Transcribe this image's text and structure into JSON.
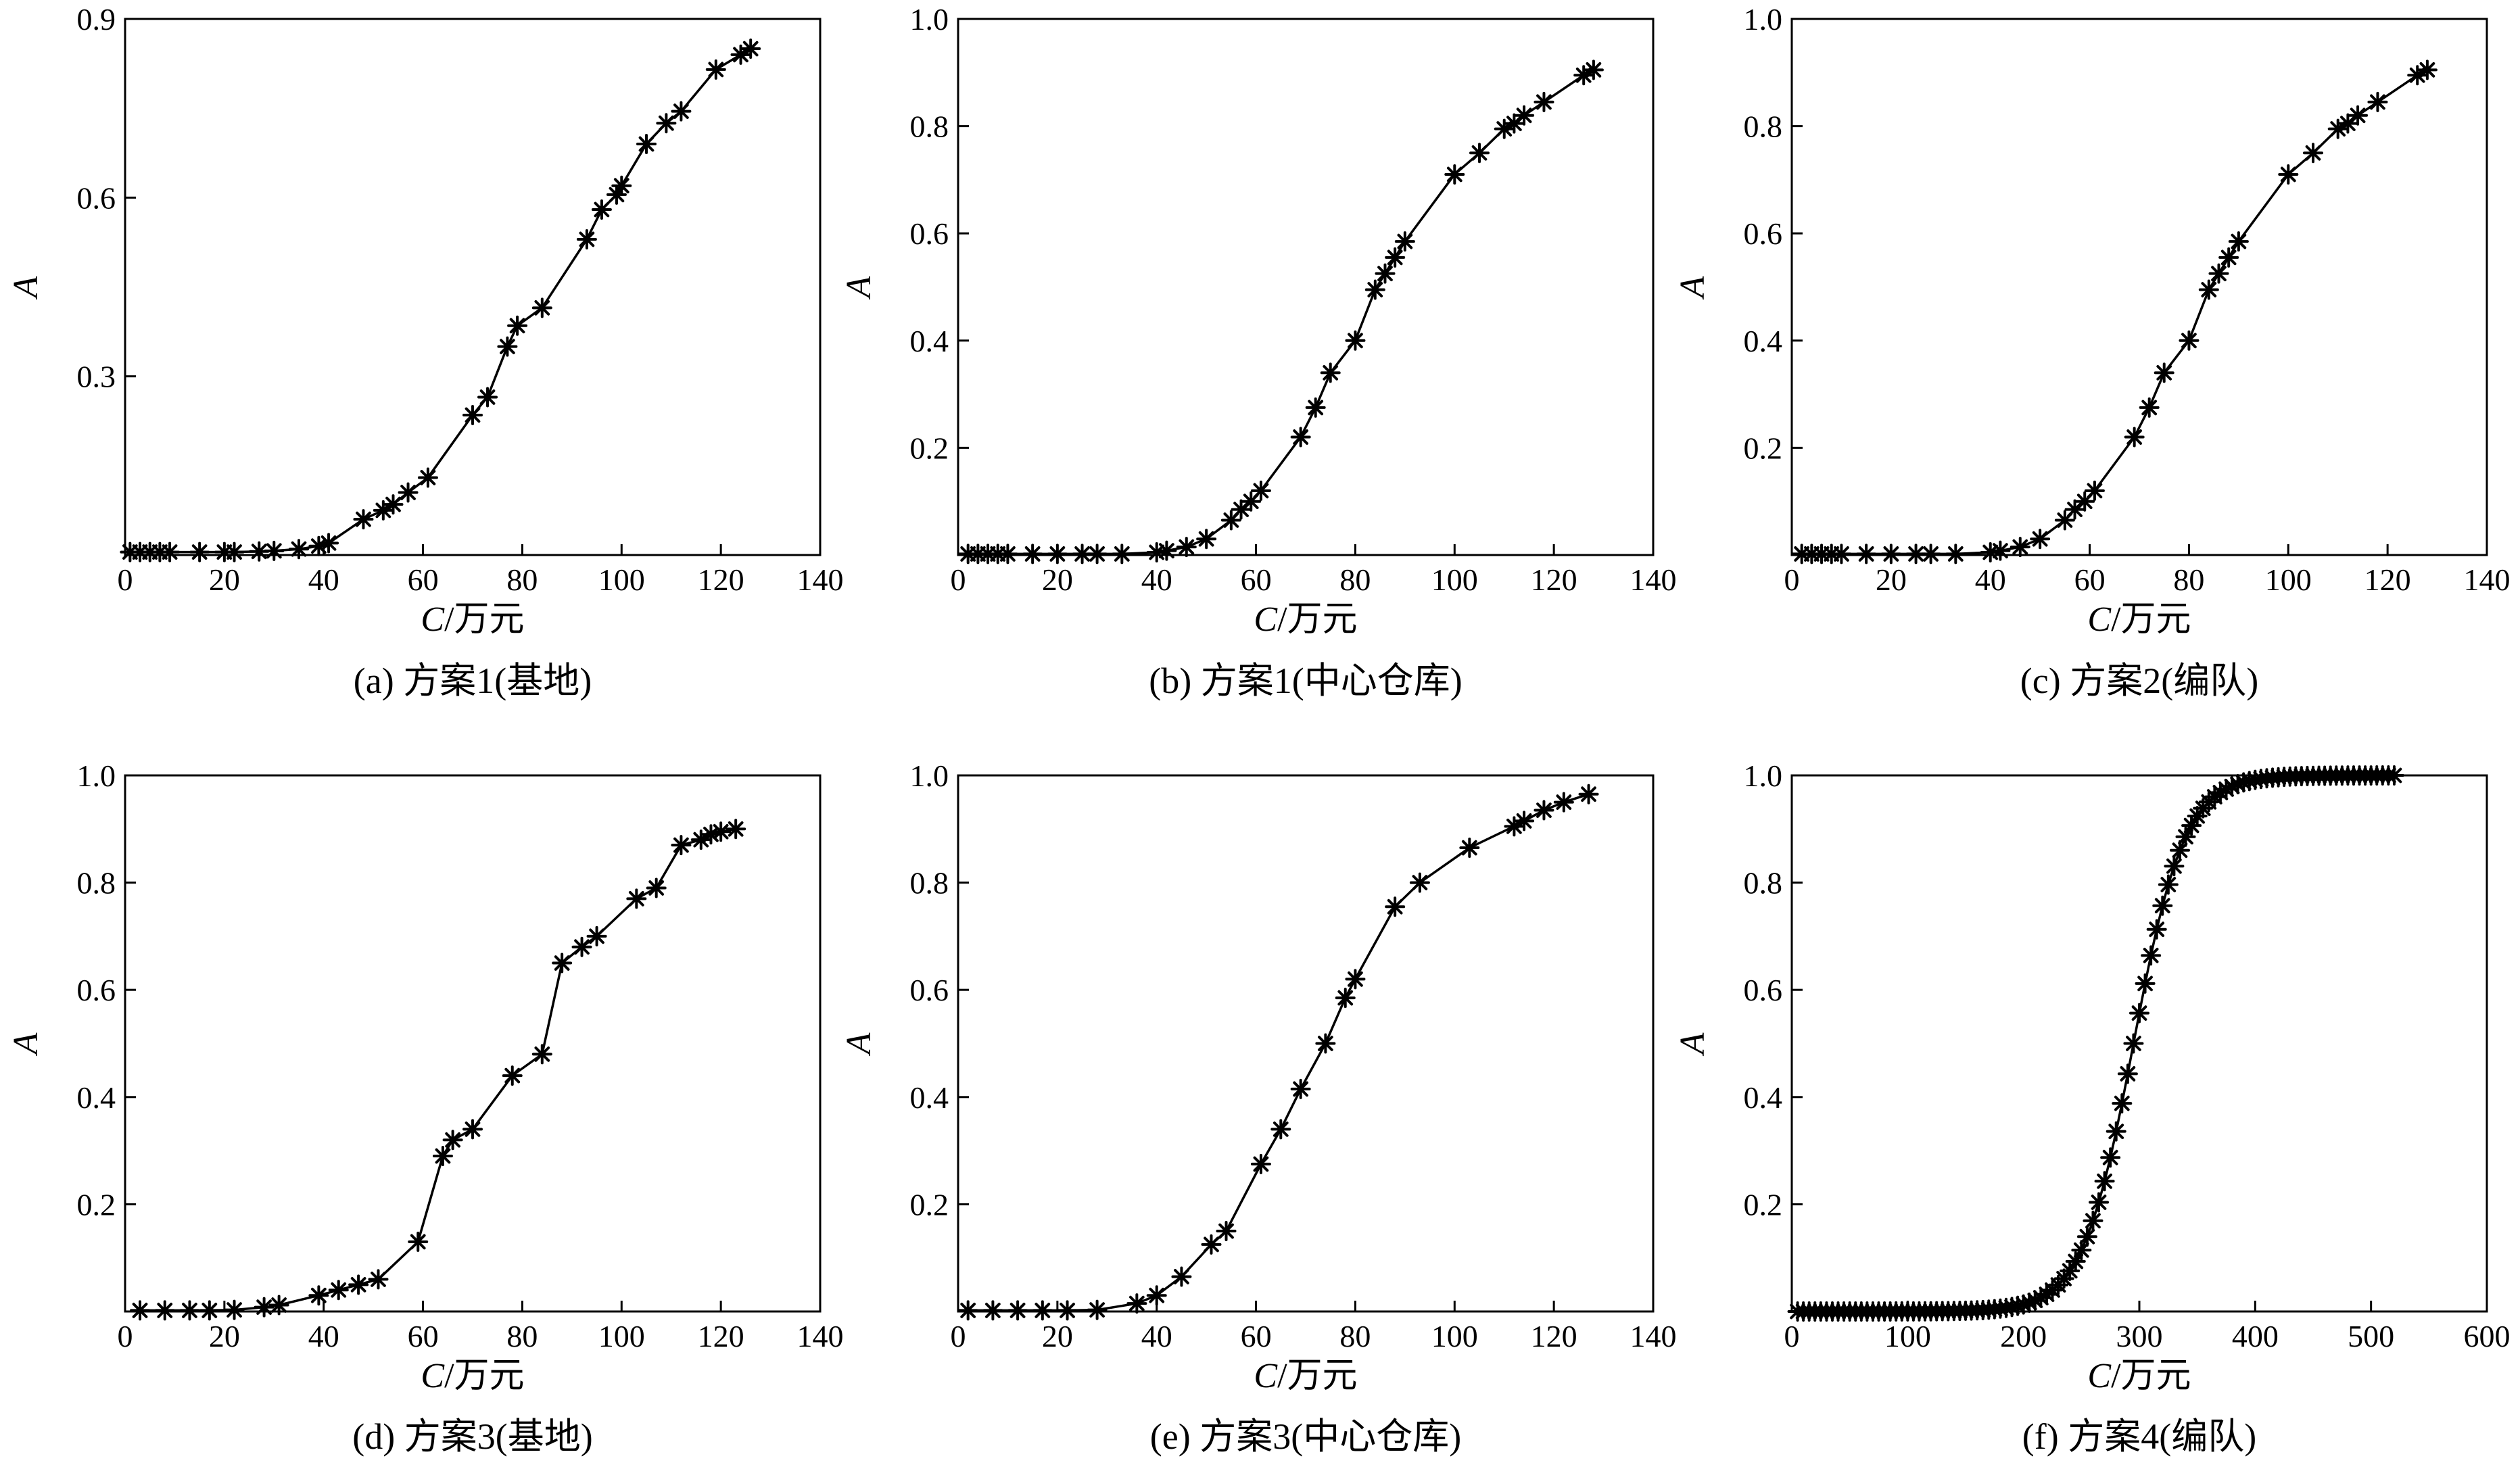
{
  "chart_data": [
    {
      "type": "line",
      "caption": "(a) 方案1(基地)",
      "xlabel_var": "C",
      "xlabel_unit": "/万元",
      "ylabel": "A",
      "xlim": [
        0,
        140
      ],
      "ylim": [
        0,
        0.9
      ],
      "xticks": [
        0,
        20,
        40,
        60,
        80,
        100,
        120,
        140
      ],
      "yticks": [
        0.3,
        0.6,
        0.9
      ],
      "ytick_labels": [
        "0.3",
        "0.6",
        "0.9"
      ],
      "series": [
        {
          "x": [
            1,
            3,
            5,
            7,
            9,
            15,
            20,
            22,
            27,
            30,
            35,
            39,
            41,
            48,
            52,
            54,
            57,
            61,
            70,
            73,
            77,
            79,
            84,
            93,
            96,
            99,
            100,
            105,
            109,
            112,
            119,
            124,
            126
          ],
          "y": [
            0.005,
            0.005,
            0.005,
            0.005,
            0.005,
            0.005,
            0.005,
            0.005,
            0.006,
            0.007,
            0.01,
            0.015,
            0.02,
            0.06,
            0.075,
            0.085,
            0.105,
            0.13,
            0.235,
            0.265,
            0.35,
            0.385,
            0.415,
            0.53,
            0.58,
            0.605,
            0.62,
            0.69,
            0.725,
            0.745,
            0.815,
            0.84,
            0.85
          ]
        }
      ]
    },
    {
      "type": "line",
      "caption": "(b) 方案1(中心仓库)",
      "xlabel_var": "C",
      "xlabel_unit": "/万元",
      "ylabel": "A",
      "xlim": [
        0,
        140
      ],
      "ylim": [
        0,
        1.0
      ],
      "xticks": [
        0,
        20,
        40,
        60,
        80,
        100,
        120,
        140
      ],
      "yticks": [
        0.2,
        0.4,
        0.6,
        0.8,
        1.0
      ],
      "ytick_labels": [
        "0.2",
        "0.4",
        "0.6",
        "0.8",
        "1.0"
      ],
      "series": [
        {
          "x": [
            2,
            4,
            6,
            8,
            10,
            15,
            20,
            25,
            28,
            33,
            40,
            42,
            46,
            50,
            55,
            57,
            59,
            61,
            69,
            72,
            75,
            80,
            84,
            86,
            88,
            90,
            100,
            105,
            110,
            112,
            114,
            118,
            126,
            128
          ],
          "y": [
            0.002,
            0.002,
            0.002,
            0.002,
            0.002,
            0.002,
            0.002,
            0.002,
            0.002,
            0.002,
            0.005,
            0.008,
            0.015,
            0.03,
            0.065,
            0.085,
            0.1,
            0.12,
            0.22,
            0.275,
            0.34,
            0.4,
            0.495,
            0.525,
            0.555,
            0.585,
            0.71,
            0.75,
            0.795,
            0.805,
            0.82,
            0.845,
            0.895,
            0.905
          ]
        }
      ]
    },
    {
      "type": "line",
      "caption": "(c) 方案2(编队)",
      "xlabel_var": "C",
      "xlabel_unit": "/万元",
      "ylabel": "A",
      "xlim": [
        0,
        140
      ],
      "ylim": [
        0,
        1.0
      ],
      "xticks": [
        0,
        20,
        40,
        60,
        80,
        100,
        120,
        140
      ],
      "yticks": [
        0.2,
        0.4,
        0.6,
        0.8,
        1.0
      ],
      "ytick_labels": [
        "0.2",
        "0.4",
        "0.6",
        "0.8",
        "1.0"
      ],
      "series": [
        {
          "x": [
            2,
            4,
            6,
            8,
            10,
            15,
            20,
            25,
            28,
            33,
            40,
            42,
            46,
            50,
            55,
            57,
            59,
            61,
            69,
            72,
            75,
            80,
            84,
            86,
            88,
            90,
            100,
            105,
            110,
            112,
            114,
            118,
            126,
            128
          ],
          "y": [
            0.002,
            0.002,
            0.002,
            0.002,
            0.002,
            0.002,
            0.002,
            0.002,
            0.002,
            0.002,
            0.005,
            0.008,
            0.015,
            0.03,
            0.065,
            0.085,
            0.1,
            0.12,
            0.22,
            0.275,
            0.34,
            0.4,
            0.495,
            0.525,
            0.555,
            0.585,
            0.71,
            0.75,
            0.795,
            0.805,
            0.82,
            0.845,
            0.895,
            0.905
          ]
        }
      ]
    },
    {
      "type": "line",
      "caption": "(d) 方案3(基地)",
      "xlabel_var": "C",
      "xlabel_unit": "/万元",
      "ylabel": "A",
      "xlim": [
        0,
        140
      ],
      "ylim": [
        0,
        1.0
      ],
      "xticks": [
        0,
        20,
        40,
        60,
        80,
        100,
        120,
        140
      ],
      "yticks": [
        0.2,
        0.4,
        0.6,
        0.8,
        1.0
      ],
      "ytick_labels": [
        "0.2",
        "0.4",
        "0.6",
        "0.8",
        "1.0"
      ],
      "series": [
        {
          "x": [
            3,
            8,
            13,
            17,
            22,
            28,
            31,
            39,
            43,
            47,
            51,
            59,
            64,
            66,
            70,
            78,
            84,
            88,
            92,
            95,
            103,
            107,
            112,
            116,
            118,
            120,
            123
          ],
          "y": [
            0.002,
            0.002,
            0.002,
            0.002,
            0.003,
            0.008,
            0.012,
            0.03,
            0.04,
            0.05,
            0.06,
            0.13,
            0.29,
            0.32,
            0.34,
            0.44,
            0.48,
            0.65,
            0.68,
            0.7,
            0.77,
            0.79,
            0.87,
            0.88,
            0.89,
            0.895,
            0.9
          ]
        }
      ]
    },
    {
      "type": "line",
      "caption": "(e) 方案3(中心仓库)",
      "xlabel_var": "C",
      "xlabel_unit": "/万元",
      "ylabel": "A",
      "xlim": [
        0,
        140
      ],
      "ylim": [
        0,
        1.0
      ],
      "xticks": [
        0,
        20,
        40,
        60,
        80,
        100,
        120,
        140
      ],
      "yticks": [
        0.2,
        0.4,
        0.6,
        0.8,
        1.0
      ],
      "ytick_labels": [
        "0.2",
        "0.4",
        "0.6",
        "0.8",
        "1.0"
      ],
      "series": [
        {
          "x": [
            2,
            7,
            12,
            17,
            22,
            28,
            36,
            40,
            45,
            51,
            54,
            61,
            65,
            69,
            74,
            78,
            80,
            88,
            93,
            103,
            112,
            114,
            118,
            122,
            127
          ],
          "y": [
            0.002,
            0.002,
            0.002,
            0.002,
            0.002,
            0.003,
            0.015,
            0.03,
            0.065,
            0.125,
            0.15,
            0.275,
            0.34,
            0.415,
            0.5,
            0.585,
            0.62,
            0.755,
            0.8,
            0.865,
            0.905,
            0.915,
            0.935,
            0.95,
            0.965
          ]
        }
      ]
    },
    {
      "type": "line",
      "caption": "(f) 方案4(编队)",
      "xlabel_var": "C",
      "xlabel_unit": "/万元",
      "ylabel": "A",
      "xlim": [
        0,
        600
      ],
      "ylim": [
        0,
        1.0
      ],
      "xticks": [
        0,
        100,
        200,
        300,
        400,
        500,
        600
      ],
      "yticks": [
        0.2,
        0.4,
        0.6,
        0.8,
        1.0
      ],
      "ytick_labels": [
        "0.2",
        "0.4",
        "0.6",
        "0.8",
        "1.0"
      ],
      "sigmoid": {
        "center": 295,
        "scale": 22,
        "x_start": 5,
        "x_end": 520,
        "step": 5
      }
    }
  ]
}
